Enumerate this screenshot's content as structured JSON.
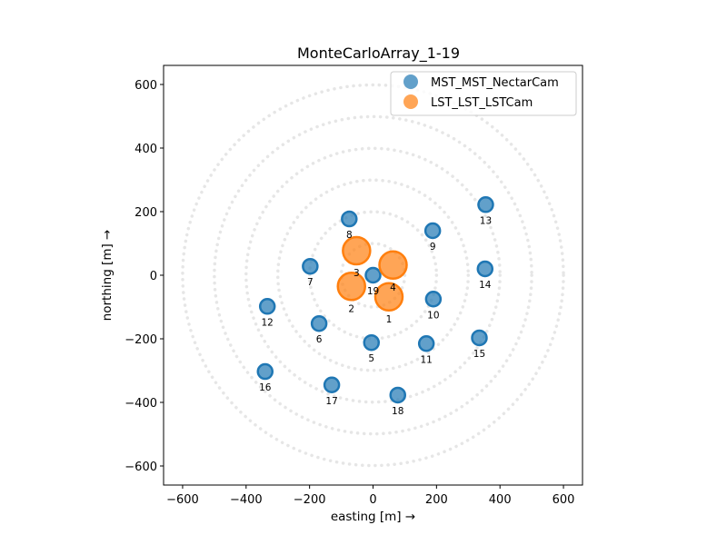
{
  "chart_data": {
    "type": "scatter",
    "title": "MonteCarloArray_1-19",
    "xlabel": "easting [m] →",
    "ylabel": "northing [m] →",
    "xlim": [
      -660,
      660
    ],
    "ylim": [
      -660,
      660
    ],
    "xticks": [
      -600,
      -400,
      -200,
      0,
      200,
      400,
      600
    ],
    "yticks": [
      -600,
      -400,
      -200,
      0,
      200,
      400,
      600
    ],
    "xtick_labels": [
      "−600",
      "−400",
      "−200",
      "0",
      "200",
      "400",
      "600"
    ],
    "ytick_labels": [
      "−600",
      "−400",
      "−200",
      "0",
      "200",
      "400",
      "600"
    ],
    "grid": false,
    "reference_rings_radius": [
      100,
      200,
      300,
      400,
      500,
      600
    ],
    "legend_position": "top-right",
    "series": [
      {
        "name": "MST_MST_NectarCam",
        "color": "#1f77b4",
        "points": [
          {
            "id": "5",
            "x": -5,
            "y": -212
          },
          {
            "id": "6",
            "x": -170,
            "y": -152
          },
          {
            "id": "7",
            "x": -198,
            "y": 28
          },
          {
            "id": "8",
            "x": -75,
            "y": 177
          },
          {
            "id": "9",
            "x": 188,
            "y": 140
          },
          {
            "id": "10",
            "x": 190,
            "y": -75
          },
          {
            "id": "11",
            "x": 168,
            "y": -215
          },
          {
            "id": "12",
            "x": -333,
            "y": -98
          },
          {
            "id": "13",
            "x": 355,
            "y": 222
          },
          {
            "id": "14",
            "x": 353,
            "y": 20
          },
          {
            "id": "15",
            "x": 335,
            "y": -197
          },
          {
            "id": "16",
            "x": -340,
            "y": -303
          },
          {
            "id": "17",
            "x": -130,
            "y": -345
          },
          {
            "id": "18",
            "x": 78,
            "y": -377
          },
          {
            "id": "19",
            "x": 0,
            "y": 0
          }
        ]
      },
      {
        "name": "LST_LST_LSTCam",
        "color": "#ff7f0e",
        "points": [
          {
            "id": "1",
            "x": 50,
            "y": -68
          },
          {
            "id": "2",
            "x": -68,
            "y": -35
          },
          {
            "id": "3",
            "x": -52,
            "y": 77
          },
          {
            "id": "4",
            "x": 63,
            "y": 32
          }
        ]
      }
    ]
  }
}
